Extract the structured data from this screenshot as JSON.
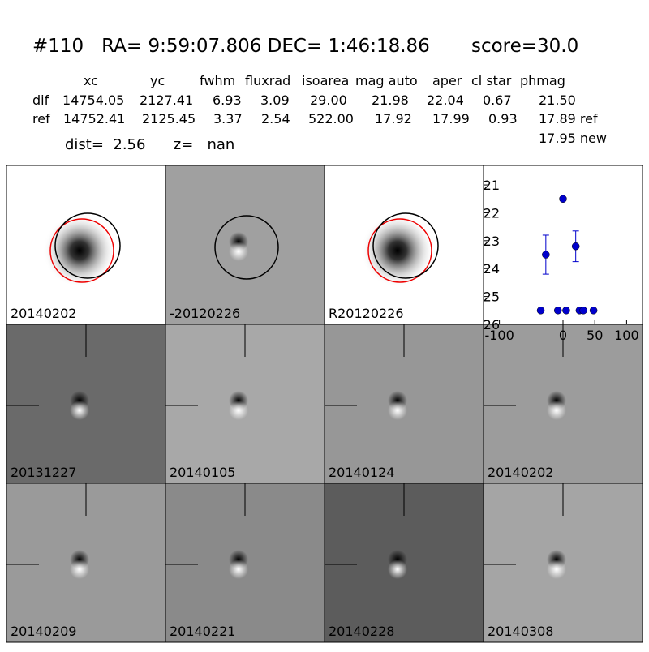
{
  "header": {
    "title": "#110   RA= 9:59:07.806 DEC= 1:46:18.86       score=30.0",
    "columns": [
      "xc",
      "yc",
      "fwhm",
      "fluxrad",
      "isoarea",
      "mag auto",
      "aper",
      "cl star",
      "phmag"
    ],
    "rows": [
      [
        "dif",
        "14754.05",
        "2127.41",
        "6.93",
        "3.09",
        "29.00",
        "21.98",
        "22.04",
        "0.67",
        "21.50"
      ],
      [
        "ref",
        "14752.41",
        "2125.45",
        "3.37",
        "2.54",
        "522.00",
        "17.92",
        "17.99",
        "0.93",
        "17.89 ref"
      ]
    ],
    "note": "17.95 new",
    "dist": "dist=  2.56      z=   nan"
  },
  "panels": [
    "20140202",
    "-20120226",
    "R20120226",
    "20131227",
    "20140105",
    "20140124",
    "20140202",
    "20140209",
    "20140221",
    "20140228",
    "20140308"
  ],
  "chart_data": {
    "type": "scatter",
    "x": [
      -35,
      -27,
      -8,
      0,
      5,
      20,
      26,
      32,
      48
    ],
    "values": [
      25.5,
      23.5,
      25.5,
      21.5,
      25.5,
      23.2,
      25.5,
      25.5,
      25.5
    ],
    "errors": [
      null,
      0.7,
      null,
      0.05,
      null,
      0.55,
      null,
      null,
      null
    ],
    "color": "#0000cc",
    "xlim": [
      -125,
      125
    ],
    "xticks": [
      -100,
      0,
      50,
      100
    ],
    "ylim": [
      26,
      20.3
    ],
    "yticks": [
      21,
      22,
      23,
      24,
      25,
      26
    ]
  }
}
